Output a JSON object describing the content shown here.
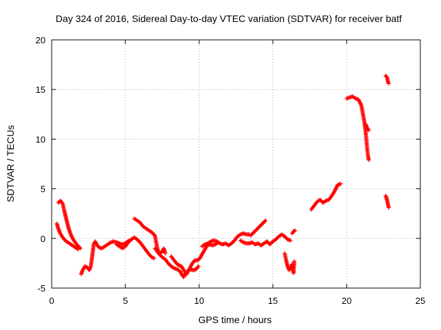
{
  "chart_data": {
    "type": "scatter",
    "title": "Day 324 of 2016, Sidereal Day-to-day VTEC variation (SDTVAR) for receiver batf",
    "xlabel": "GPS time / hours",
    "ylabel": "SDTVAR / TECUs",
    "xlim": [
      0,
      25
    ],
    "ylim": [
      -5,
      20
    ],
    "x_ticks": [
      "0",
      "5",
      "10",
      "15",
      "20",
      "25"
    ],
    "y_ticks": [
      "-5",
      "0",
      "5",
      "10",
      "15",
      "20"
    ],
    "grid": true,
    "marker": "+",
    "series": [
      {
        "name": "SDTVAR",
        "color": "#ff0000",
        "segments": [
          [
            [
              0.45,
              3.6
            ],
            [
              0.6,
              3.8
            ],
            [
              0.75,
              3.5
            ],
            [
              0.85,
              2.8
            ],
            [
              0.95,
              2.2
            ],
            [
              1.05,
              1.6
            ],
            [
              1.15,
              1.0
            ],
            [
              1.25,
              0.6
            ],
            [
              1.35,
              0.2
            ],
            [
              1.5,
              -0.2
            ],
            [
              1.65,
              -0.5
            ],
            [
              1.8,
              -0.8
            ],
            [
              1.95,
              -1.0
            ]
          ],
          [
            [
              0.35,
              1.5
            ],
            [
              0.45,
              1.0
            ],
            [
              0.55,
              0.6
            ],
            [
              0.7,
              0.2
            ],
            [
              0.85,
              -0.1
            ],
            [
              1.0,
              -0.3
            ],
            [
              1.2,
              -0.5
            ],
            [
              1.4,
              -0.7
            ],
            [
              1.6,
              -0.9
            ],
            [
              1.8,
              -1.1
            ]
          ],
          [
            [
              2.0,
              -3.6
            ],
            [
              2.1,
              -3.2
            ],
            [
              2.25,
              -2.8
            ],
            [
              2.4,
              -2.9
            ],
            [
              2.55,
              -3.2
            ],
            [
              2.65,
              -2.8
            ],
            [
              2.75,
              -1.8
            ],
            [
              2.85,
              -0.6
            ],
            [
              2.95,
              -0.3
            ],
            [
              3.05,
              -0.6
            ],
            [
              3.2,
              -0.9
            ],
            [
              3.4,
              -1.0
            ],
            [
              3.6,
              -0.8
            ],
            [
              3.8,
              -0.6
            ],
            [
              4.0,
              -0.4
            ],
            [
              4.2,
              -0.3
            ],
            [
              4.4,
              -0.4
            ],
            [
              4.6,
              -0.5
            ],
            [
              4.8,
              -0.6
            ],
            [
              5.0,
              -0.5
            ],
            [
              5.15,
              -0.3
            ],
            [
              5.3,
              -0.2
            ]
          ],
          [
            [
              4.4,
              -0.6
            ],
            [
              4.6,
              -0.8
            ],
            [
              4.8,
              -1.0
            ],
            [
              5.0,
              -0.8
            ],
            [
              5.2,
              -0.4
            ],
            [
              5.4,
              -0.1
            ],
            [
              5.6,
              0.1
            ],
            [
              5.8,
              -0.1
            ],
            [
              6.0,
              -0.4
            ],
            [
              6.2,
              -0.8
            ],
            [
              6.4,
              -1.2
            ],
            [
              6.6,
              -1.6
            ],
            [
              6.8,
              -1.9
            ],
            [
              6.95,
              -2.0
            ]
          ],
          [
            [
              5.6,
              2.0
            ],
            [
              5.8,
              1.8
            ],
            [
              6.0,
              1.6
            ],
            [
              6.2,
              1.2
            ],
            [
              6.4,
              1.0
            ],
            [
              6.6,
              0.8
            ],
            [
              6.8,
              0.6
            ],
            [
              7.0,
              0.3
            ],
            [
              7.1,
              -0.5
            ],
            [
              7.2,
              -1.2
            ],
            [
              7.35,
              -1.5
            ],
            [
              7.5,
              -1.3
            ],
            [
              7.6,
              -1.0
            ],
            [
              7.7,
              -1.5
            ]
          ],
          [
            [
              7.0,
              -1.0
            ],
            [
              7.15,
              -1.3
            ],
            [
              7.3,
              -1.6
            ],
            [
              7.5,
              -1.9
            ],
            [
              7.7,
              -2.1
            ],
            [
              7.9,
              -2.5
            ],
            [
              8.1,
              -2.8
            ],
            [
              8.3,
              -3.0
            ],
            [
              8.5,
              -3.1
            ],
            [
              8.7,
              -3.3
            ],
            [
              8.85,
              -3.7
            ],
            [
              8.95,
              -3.9
            ],
            [
              9.05,
              -3.6
            ],
            [
              9.2,
              -3.3
            ],
            [
              9.4,
              -3.1
            ],
            [
              9.6,
              -3.2
            ],
            [
              9.8,
              -3.1
            ],
            [
              9.95,
              -2.8
            ]
          ],
          [
            [
              8.1,
              -1.8
            ],
            [
              8.25,
              -2.1
            ],
            [
              8.4,
              -2.4
            ],
            [
              8.6,
              -2.7
            ],
            [
              8.8,
              -2.8
            ],
            [
              9.0,
              -3.3
            ],
            [
              9.15,
              -3.6
            ],
            [
              9.3,
              -3.2
            ],
            [
              9.5,
              -2.6
            ],
            [
              9.7,
              -2.2
            ],
            [
              9.9,
              -2.2
            ],
            [
              10.05,
              -2.0
            ],
            [
              10.2,
              -1.6
            ],
            [
              10.35,
              -1.2
            ],
            [
              10.5,
              -0.8
            ],
            [
              10.7,
              -0.6
            ],
            [
              10.9,
              -0.7
            ],
            [
              11.1,
              -0.6
            ],
            [
              11.3,
              -0.4
            ]
          ],
          [
            [
              10.2,
              -0.8
            ],
            [
              10.4,
              -0.6
            ],
            [
              10.6,
              -0.5
            ],
            [
              10.8,
              -0.3
            ],
            [
              11.0,
              -0.2
            ],
            [
              11.2,
              -0.3
            ],
            [
              11.4,
              -0.5
            ],
            [
              11.6,
              -0.6
            ],
            [
              11.8,
              -0.5
            ],
            [
              12.0,
              -0.7
            ],
            [
              12.2,
              -0.5
            ],
            [
              12.4,
              -0.2
            ],
            [
              12.6,
              0.2
            ],
            [
              12.8,
              0.4
            ],
            [
              13.0,
              0.5
            ],
            [
              13.2,
              0.4
            ],
            [
              13.4,
              0.4
            ]
          ],
          [
            [
              13.5,
              0.3
            ],
            [
              13.7,
              0.6
            ],
            [
              13.9,
              0.9
            ],
            [
              14.1,
              1.2
            ],
            [
              14.3,
              1.5
            ],
            [
              14.5,
              1.8
            ]
          ],
          [
            [
              12.8,
              -0.2
            ],
            [
              13.0,
              -0.4
            ],
            [
              13.2,
              -0.5
            ],
            [
              13.4,
              -0.5
            ],
            [
              13.6,
              -0.4
            ],
            [
              13.8,
              -0.6
            ],
            [
              14.0,
              -0.5
            ],
            [
              14.2,
              -0.7
            ],
            [
              14.4,
              -0.5
            ],
            [
              14.6,
              -0.3
            ],
            [
              14.8,
              -0.6
            ],
            [
              15.0,
              -0.3
            ],
            [
              15.2,
              -0.1
            ],
            [
              15.4,
              0.2
            ],
            [
              15.6,
              0.4
            ],
            [
              15.8,
              0.2
            ],
            [
              16.0,
              -0.1
            ],
            [
              16.2,
              -0.2
            ]
          ],
          [
            [
              15.8,
              -1.5
            ],
            [
              15.9,
              -2.2
            ],
            [
              16.0,
              -2.8
            ],
            [
              16.1,
              -3.2
            ],
            [
              16.2,
              -3.0
            ],
            [
              16.3,
              -2.6
            ],
            [
              16.4,
              -3.5
            ],
            [
              16.45,
              -2.3
            ]
          ],
          [
            [
              16.3,
              0.5
            ],
            [
              16.4,
              0.7
            ],
            [
              16.5,
              0.8
            ]
          ],
          [
            [
              17.6,
              2.9
            ],
            [
              17.8,
              3.3
            ],
            [
              18.0,
              3.7
            ],
            [
              18.2,
              3.9
            ],
            [
              18.4,
              3.6
            ],
            [
              18.6,
              3.8
            ],
            [
              18.8,
              3.9
            ],
            [
              19.0,
              4.3
            ],
            [
              19.2,
              4.8
            ],
            [
              19.4,
              5.4
            ],
            [
              19.6,
              5.5
            ]
          ],
          [
            [
              20.0,
              14.1
            ],
            [
              20.2,
              14.2
            ],
            [
              20.4,
              14.3
            ],
            [
              20.6,
              14.1
            ],
            [
              20.8,
              14.0
            ],
            [
              21.0,
              13.4
            ],
            [
              21.1,
              12.6
            ],
            [
              21.2,
              11.8
            ],
            [
              21.3,
              10.6
            ],
            [
              21.35,
              9.8
            ],
            [
              21.4,
              9.0
            ],
            [
              21.45,
              8.3
            ],
            [
              21.5,
              7.9
            ]
          ],
          [
            [
              21.3,
              11.5
            ],
            [
              21.4,
              11.1
            ],
            [
              21.5,
              10.9
            ]
          ],
          [
            [
              22.65,
              16.4
            ],
            [
              22.75,
              16.2
            ],
            [
              22.8,
              15.8
            ],
            [
              22.85,
              15.6
            ]
          ],
          [
            [
              22.65,
              4.3
            ],
            [
              22.72,
              4.0
            ],
            [
              22.78,
              3.6
            ],
            [
              22.82,
              3.3
            ],
            [
              22.86,
              3.1
            ]
          ]
        ]
      }
    ]
  }
}
